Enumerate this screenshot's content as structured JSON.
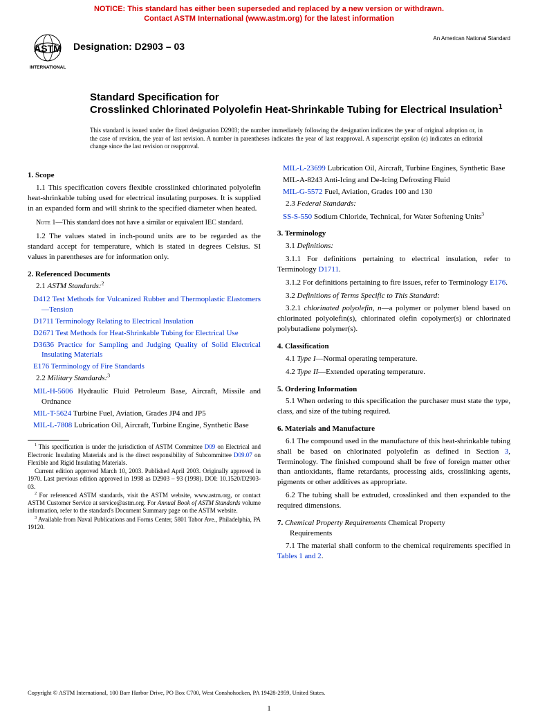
{
  "notice": {
    "line1": "NOTICE: This standard has either been superseded and replaced by a new version or withdrawn.",
    "line2": "Contact ASTM International (www.astm.org) for the latest information",
    "color": "#d40000"
  },
  "header": {
    "designation_label": "Designation: D2903 – 03",
    "top_right": "An American National Standard",
    "logo_text_top": "ASTM",
    "logo_text_bottom": "INTERNATIONAL"
  },
  "title": {
    "line1": "Standard Specification for",
    "line2": "Crosslinked Chlorinated Polyolefin Heat-Shrinkable Tubing for Electrical Insulation",
    "sup": "1"
  },
  "issue_note": "This standard is issued under the fixed designation D2903; the number immediately following the designation indicates the year of original adoption or, in the case of revision, the year of last revision. A number in parentheses indicates the year of last reapproval. A superscript epsilon (ε) indicates an editorial change since the last revision or reapproval.",
  "left": {
    "s1_head": "1.  Scope",
    "s1_1": "1.1 This specification covers flexible crosslinked chlorinated polyolefin heat-shrinkable tubing used for electrical insulating purposes. It is supplied in an expanded form and will shrink to the specified diameter when heated.",
    "note1_label": "Note 1",
    "note1_text": "—This standard does not have a similar or equivalent IEC standard.",
    "s1_2": "1.2 The values stated in inch-pound units are to be regarded as the standard accept for temperature, which is stated in degrees Celsius. SI values in parentheses are for information only.",
    "s2_head": "2.  Referenced Documents",
    "s2_1_label": "2.1 ",
    "s2_1_italic": "ASTM Standards:",
    "s2_1_sup": "2",
    "astm_refs": [
      {
        "code": "D412",
        "text": " Test Methods for Vulcanized Rubber and Thermoplastic Elastomers—Tension"
      },
      {
        "code": "D1711",
        "text": " Terminology Relating to Electrical Insulation"
      },
      {
        "code": "D2671",
        "text": " Test Methods for Heat-Shrinkable Tubing for Electrical Use"
      },
      {
        "code": "D3636",
        "text": " Practice for Sampling and Judging Quality of Solid Electrical Insulating Materials"
      },
      {
        "code": "E176",
        "text": " Terminology of Fire Standards"
      }
    ],
    "s2_2_label": "2.2 ",
    "s2_2_italic": "Military Standards:",
    "s2_2_sup": "3",
    "mil_refs": [
      {
        "code": "MIL-H-5606",
        "text": " Hydraulic Fluid Petroleum Base, Aircraft, Missile and Ordnance",
        "link": true
      },
      {
        "code": "MIL-T-5624",
        "text": " Turbine Fuel, Aviation, Grades JP4 and JP5",
        "link": true
      },
      {
        "code": "MIL-L-7808",
        "text": " Lubrication Oil, Aircraft, Turbine Engine, Synthetic Base",
        "link": true
      }
    ],
    "footnotes": {
      "f1a": "This specification is under the jurisdiction of ASTM Committee ",
      "f1_link1": "D09",
      "f1b": " on Electrical and Electronic Insulating Materials and is the direct responsibility of Subcommittee ",
      "f1_link2": "D09.07",
      "f1c": " on Flexible and Rigid Insulating Materials.",
      "f1d": "Current edition approved March 10, 2003. Published April 2003. Originally approved in 1970. Last previous edition approved in 1998 as D2903 – 93 (1998). DOI: 10.1520/D2903-03.",
      "f2": "For referenced ASTM standards, visit the ASTM website, www.astm.org, or contact ASTM Customer Service at service@astm.org. For ",
      "f2_italic": "Annual Book of ASTM Standards",
      "f2b": " volume information, refer to the standard's Document Summary page on the ASTM website.",
      "f3": "Available from Naval Publications and Forms Center, 5801 Tabor Ave., Philadelphia, PA 19120."
    }
  },
  "right": {
    "mil_refs2": [
      {
        "code": "MIL-L-23699",
        "text": " Lubrication Oil, Aircraft, Turbine Engines, Synthetic Base",
        "link": true
      },
      {
        "code": "MIL-A-8243",
        "text": " Anti-Icing and De-Icing Defrosting Fluid",
        "link": false
      },
      {
        "code": "MIL-G-5572",
        "text": " Fuel, Aviation, Grades 100 and 130",
        "link": true
      }
    ],
    "s2_3_label": "2.3 ",
    "s2_3_italic": "Federal Standards:",
    "fed_refs": [
      {
        "code": "SS-S-550",
        "text": " Sodium Chloride, Technical, for Water Softening Units",
        "sup": "3",
        "link": true
      }
    ],
    "s3_head": "3.  Terminology",
    "s3_1": "3.1 ",
    "s3_1_italic": "Definitions:",
    "s3_1_1a": "3.1.1 For definitions pertaining to electrical insulation, refer to Terminology ",
    "s3_1_1_link": "D1711",
    "s3_1_1b": ".",
    "s3_1_2a": "3.1.2 For definitions pertaining to fire issues, refer to Terminology ",
    "s3_1_2_link": "E176",
    "s3_1_2b": ".",
    "s3_2": "3.2 ",
    "s3_2_italic": "Definitions of Terms Specific to This Standard:",
    "s3_2_1": "3.2.1 ",
    "s3_2_1_term": "chlorinated polyolefin, n",
    "s3_2_1_def": "—a polymer or polymer blend based on chlorinated polyolefin(s), chlorinated olefin copolymer(s) or chlorinated polybutadiene polymer(s).",
    "s4_head": "4.  Classification",
    "s4_1": "4.1 ",
    "s4_1_italic": "Type I",
    "s4_1_text": "—Normal operating temperature.",
    "s4_2": "4.2 ",
    "s4_2_italic": "Type II",
    "s4_2_text": "—Extended operating temperature.",
    "s5_head": "5.  Ordering Information",
    "s5_1": "5.1 When ordering to this specification the purchaser must state the type, class, and size of the tubing required.",
    "s6_head": "6.  Materials and Manufacture",
    "s6_1a": "6.1 The compound used in the manufacture of this heat-shrinkable tubing shall be based on chlorinated polyolefin as defined in Section ",
    "s6_1_link": "3",
    "s6_1b": ", Terminology. The finished compound shall be free of foreign matter other than antioxidants, flame retardants, processing aids, crosslinking agents, pigments or other additives as appropriate.",
    "s6_2": "6.2 The tubing shall be extruded, crosslinked and then expanded to the required dimensions.",
    "s7_num": "7. ",
    "s7_italic": "Chemical Property Requirements",
    "s7_plain": " Chemical Property",
    "s7_plain2": "Requirements",
    "s7_1a": "7.1 The material shall conform to the chemical requirements specified in ",
    "s7_1_link": "Tables 1 and 2",
    "s7_1b": "."
  },
  "copyright": "Copyright © ASTM International, 100 Barr Harbor Drive, PO Box C700, West Conshohocken, PA 19428-2959, United States.",
  "page_number": "1"
}
